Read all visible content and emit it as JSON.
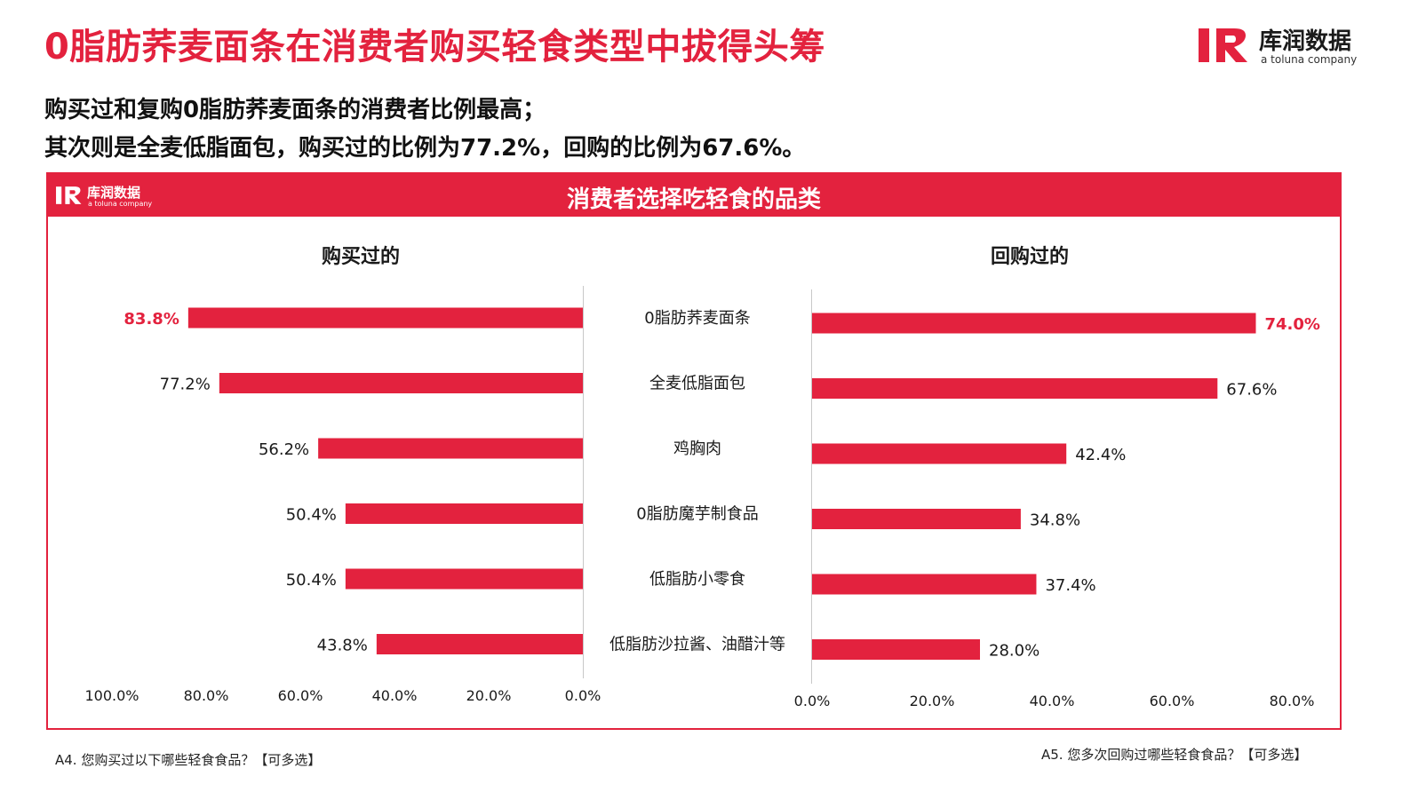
{
  "header": {
    "title": "0脂肪荞麦面条在消费者购买轻食类型中拔得头筹",
    "subtitle_line1": "购买过和复购0脂肪荞麦面条的消费者比例最高；",
    "subtitle_line2": "其次则是全麦低脂面包，购买过的比例为77.2%，回购的比例为67.6%。"
  },
  "brand": {
    "name": "库润数据",
    "sub": "a toluna company",
    "mark_letters": "R"
  },
  "panel": {
    "title": "消费者选择吃轻食的品类"
  },
  "colors": {
    "accent": "#e3223e",
    "text": "#1a1a1a",
    "axis": "#c8c8c8"
  },
  "chart_data": [
    {
      "type": "bar",
      "orientation": "horizontal",
      "direction": "right-to-left",
      "title": "购买过的",
      "categories": [
        "0脂肪荞麦面条",
        "全麦低脂面包",
        "鸡胸肉",
        "0脂肪魔芋制食品",
        "低脂肪小零食",
        "低脂肪沙拉酱、油醋汁等"
      ],
      "values": [
        83.8,
        77.2,
        56.2,
        50.4,
        50.4,
        43.8
      ],
      "value_labels": [
        "83.8%",
        "77.2%",
        "56.2%",
        "50.4%",
        "50.4%",
        "43.8%"
      ],
      "highlight_index": 0,
      "xlim": [
        0,
        100
      ],
      "ticks": [
        "100.0%",
        "80.0%",
        "60.0%",
        "40.0%",
        "20.0%",
        "0.0%"
      ],
      "tick_values": [
        100,
        80,
        60,
        40,
        20,
        0
      ]
    },
    {
      "type": "bar",
      "orientation": "horizontal",
      "direction": "left-to-right",
      "title": "回购过的",
      "categories": [
        "0脂肪荞麦面条",
        "全麦低脂面包",
        "鸡胸肉",
        "0脂肪魔芋制食品",
        "低脂肪小零食",
        "低脂肪沙拉酱、油醋汁等"
      ],
      "values": [
        74.0,
        67.6,
        42.4,
        34.8,
        37.4,
        28.0
      ],
      "value_labels": [
        "74.0%",
        "67.6%",
        "42.4%",
        "34.8%",
        "37.4%",
        "28.0%"
      ],
      "highlight_index": 0,
      "xlim": [
        0,
        80
      ],
      "ticks": [
        "0.0%",
        "20.0%",
        "40.0%",
        "60.0%",
        "80.0%"
      ],
      "tick_values": [
        0,
        20,
        40,
        60,
        80
      ]
    }
  ],
  "footnotes": {
    "left": "A4. 您购买过以下哪些轻食食品？【可多选】",
    "right": "A5. 您多次回购过哪些轻食食品？【可多选】"
  }
}
